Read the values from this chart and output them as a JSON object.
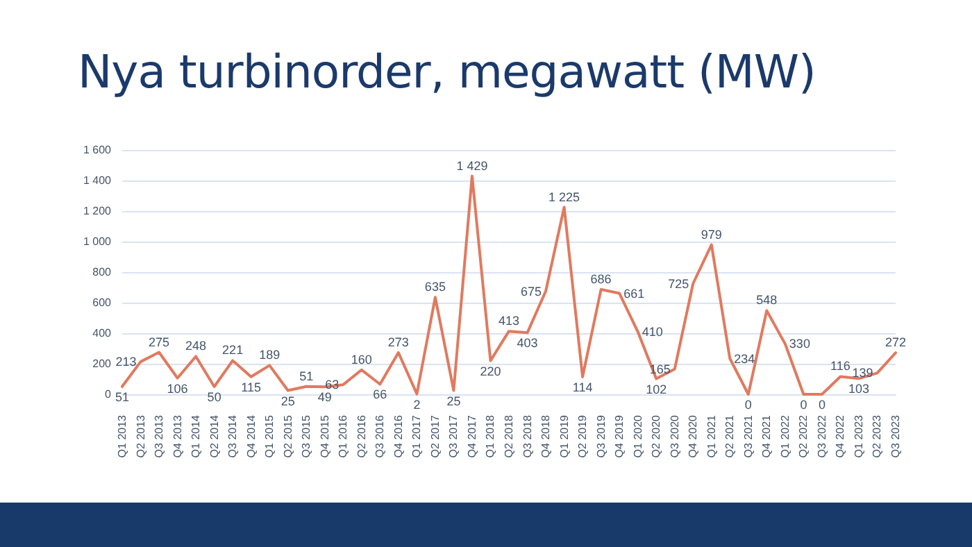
{
  "chart_data": {
    "type": "line",
    "title": "Nya turbinorder, megawatt (MW)",
    "categories": [
      "Q1 2013",
      "Q2 2013",
      "Q3 2013",
      "Q4 2013",
      "Q1 2014",
      "Q2 2014",
      "Q3 2014",
      "Q4 2014",
      "Q1 2015",
      "Q2 2015",
      "Q3 2015",
      "Q4 2015",
      "Q1 2016",
      "Q2 2016",
      "Q3 2016",
      "Q4 2016",
      "Q1 2017",
      "Q2 2017",
      "Q3 2017",
      "Q4 2017",
      "Q1 2018",
      "Q2 2018",
      "Q3 2018",
      "Q4 2018",
      "Q1 2019",
      "Q2 2019",
      "Q3 2019",
      "Q4 2019",
      "Q1 2020",
      "Q2 2020",
      "Q3 2020",
      "Q4 2020",
      "Q1 2021",
      "Q2 2021",
      "Q3 2021",
      "Q4 2021",
      "Q1 2022",
      "Q2 2022",
      "Q3 2022",
      "Q4 2022",
      "Q1 2023",
      "Q2 2023",
      "Q3 2023"
    ],
    "series": [
      {
        "color": "#e07a5f",
        "values": [
          51,
          213,
          275,
          106,
          248,
          50,
          221,
          115,
          189,
          25,
          51,
          49,
          63,
          160,
          66,
          273,
          2,
          635,
          25,
          1429,
          220,
          413,
          403,
          675,
          1225,
          114,
          686,
          661,
          410,
          102,
          165,
          725,
          979,
          234,
          0,
          548,
          330,
          0,
          0,
          116,
          103,
          139,
          272
        ],
        "value_labels": [
          "51",
          "213",
          "275",
          "106",
          "248",
          "50",
          "221",
          "115",
          "189",
          "25",
          "51",
          "49",
          "63",
          "160",
          "66",
          "273",
          "2",
          "635",
          "25",
          "1 429",
          "220",
          "413",
          "403",
          "675",
          "1 225",
          "114",
          "686",
          "661",
          "410",
          "102",
          "165",
          "725",
          "979",
          "234",
          "0",
          "548",
          "330",
          "0",
          "0",
          "116",
          "103",
          "139",
          "272"
        ]
      }
    ],
    "ylim": [
      0,
      1600
    ],
    "yticks": [
      0,
      200,
      400,
      600,
      800,
      {
        "value": 1000,
        "label": "1 000"
      },
      {
        "value": 1200,
        "label": "1 200"
      },
      {
        "value": 1400,
        "label": "1 400"
      },
      {
        "value": 1600,
        "label": "1 600"
      }
    ],
    "grid": "y",
    "marker": "none",
    "line_style": "solid"
  }
}
